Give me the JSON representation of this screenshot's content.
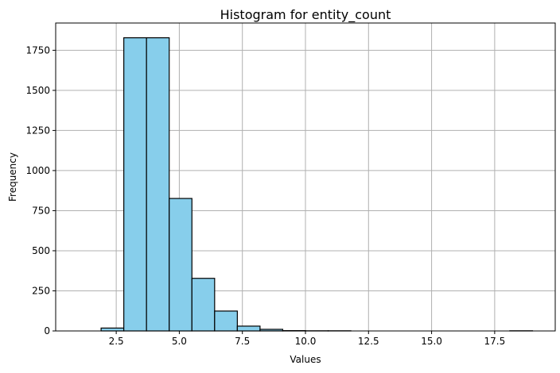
{
  "chart_data": {
    "type": "bar",
    "title": "Histogram for entity_count",
    "xlabel": "Values",
    "ylabel": "Frequency",
    "xlim": [
      0.1,
      19.9
    ],
    "ylim": [
      0,
      1920
    ],
    "grid": true,
    "bar_color": "#87ceeb",
    "edge_color": "#000000",
    "bins": [
      {
        "x0": 1.0,
        "x1": 1.9,
        "value": 0
      },
      {
        "x0": 1.9,
        "x1": 2.8,
        "value": 18
      },
      {
        "x0": 2.8,
        "x1": 3.7,
        "value": 1828
      },
      {
        "x0": 3.7,
        "x1": 4.6,
        "value": 1828
      },
      {
        "x0": 4.6,
        "x1": 5.5,
        "value": 826
      },
      {
        "x0": 5.5,
        "x1": 6.4,
        "value": 328
      },
      {
        "x0": 6.4,
        "x1": 7.3,
        "value": 124
      },
      {
        "x0": 7.3,
        "x1": 8.2,
        "value": 30
      },
      {
        "x0": 8.2,
        "x1": 9.1,
        "value": 10
      },
      {
        "x0": 9.1,
        "x1": 10.0,
        "value": 2
      },
      {
        "x0": 10.0,
        "x1": 10.9,
        "value": 1
      },
      {
        "x0": 10.9,
        "x1": 11.8,
        "value": 1
      },
      {
        "x0": 11.8,
        "x1": 12.7,
        "value": 0
      },
      {
        "x0": 12.7,
        "x1": 13.6,
        "value": 0
      },
      {
        "x0": 13.6,
        "x1": 14.5,
        "value": 0
      },
      {
        "x0": 14.5,
        "x1": 15.4,
        "value": 0
      },
      {
        "x0": 15.4,
        "x1": 16.3,
        "value": 0
      },
      {
        "x0": 16.3,
        "x1": 17.2,
        "value": 0
      },
      {
        "x0": 17.2,
        "x1": 18.1,
        "value": 0
      },
      {
        "x0": 18.1,
        "x1": 19.0,
        "value": 1
      }
    ],
    "x_ticks": [
      {
        "value": 2.5,
        "label": "2.5"
      },
      {
        "value": 5.0,
        "label": "5.0"
      },
      {
        "value": 7.5,
        "label": "7.5"
      },
      {
        "value": 10.0,
        "label": "10.0"
      },
      {
        "value": 12.5,
        "label": "12.5"
      },
      {
        "value": 15.0,
        "label": "15.0"
      },
      {
        "value": 17.5,
        "label": "17.5"
      }
    ],
    "y_ticks": [
      {
        "value": 0,
        "label": "0"
      },
      {
        "value": 250,
        "label": "250"
      },
      {
        "value": 500,
        "label": "500"
      },
      {
        "value": 750,
        "label": "750"
      },
      {
        "value": 1000,
        "label": "1000"
      },
      {
        "value": 1250,
        "label": "1250"
      },
      {
        "value": 1500,
        "label": "1500"
      },
      {
        "value": 1750,
        "label": "1750"
      }
    ]
  }
}
